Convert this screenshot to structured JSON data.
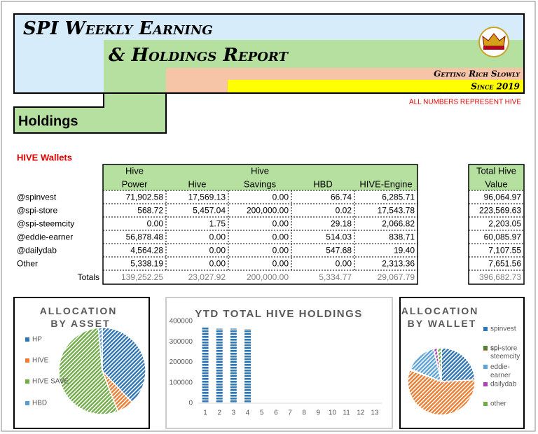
{
  "header": {
    "title_line1": "SPI Weekly Earning",
    "title_line2": "& Holdings Report",
    "tagline": "Getting Rich Slowly",
    "since": "Since 2019",
    "note": "ALL NUMBERS REPRESENT HIVE"
  },
  "section": "Holdings",
  "table": {
    "title": "HIVE Wallets",
    "columns": [
      [
        "Hive",
        "Power"
      ],
      [
        "Hive"
      ],
      [
        "Hive",
        "Savings"
      ],
      [
        "HBD"
      ],
      [
        "HIVE-Engine"
      ]
    ],
    "total_column": [
      "Total Hive",
      "Value"
    ],
    "rows": [
      [
        "@spinvest",
        "71,902.58",
        "17,569.13",
        "0.00",
        "66.74",
        "6,285.71",
        "96,064.97"
      ],
      [
        "@spi-store",
        "568.72",
        "5,457.04",
        "200,000.00",
        "0.02",
        "17,543.78",
        "223,569.63"
      ],
      [
        "@spi-steemcity",
        "0.00",
        "1.75",
        "0.00",
        "29.18",
        "2,066.82",
        "2,203.05"
      ],
      [
        "@eddie-earner",
        "56,878.48",
        "0.00",
        "0.00",
        "514.03",
        "838.71",
        "60,085.97"
      ],
      [
        "@dailydab",
        "4,564.28",
        "0.00",
        "0.00",
        "547.68",
        "19.40",
        "7,107.55"
      ],
      [
        "Other",
        "5,338.19",
        "0.00",
        "0.00",
        "0.00",
        "2,313.36",
        "7,651.56"
      ]
    ],
    "totals_label": "Totals",
    "totals": [
      "139,252.25",
      "23,027.92",
      "200,000.00",
      "5,334.77",
      "29,067.79",
      "396,682.73"
    ]
  },
  "chart_data": [
    {
      "type": "pie",
      "title": "ALLOCATION BY ASSET",
      "categories": [
        "HP",
        "HIVE",
        "HIVE SAVE",
        "HBD"
      ],
      "values": [
        139252.25,
        23027.92,
        200000,
        5334.77
      ],
      "colors": [
        "#2e75b6",
        "#ed7d31",
        "#70ad47",
        "#5b9bd5"
      ]
    },
    {
      "type": "bar",
      "title": "YTD TOTAL HIVE HOLDINGS",
      "categories": [
        1,
        2,
        3,
        4,
        5,
        6,
        7,
        8,
        9,
        10,
        11,
        12,
        13
      ],
      "values": [
        373000,
        364000,
        364000,
        362000,
        null,
        null,
        null,
        null,
        null,
        null,
        null,
        null,
        null
      ],
      "color": "#2e75b6",
      "ylim": [
        0,
        400000
      ],
      "yticks": [
        0,
        100000,
        200000,
        300000,
        400000
      ]
    },
    {
      "type": "pie",
      "title": "ALLOCATION BY WALLET",
      "categories": [
        "spinvest",
        "spi-store",
        "spi-steemcity",
        "eddie-earner",
        "dailydab",
        "other"
      ],
      "values": [
        96064.97,
        223569.63,
        2203.05,
        60085.97,
        7107.55,
        7651.56
      ],
      "colors": [
        "#2e75b6",
        "#ed7d31",
        "#548235",
        "#5ba3d9",
        "#b040b0",
        "#70ad47"
      ]
    }
  ]
}
